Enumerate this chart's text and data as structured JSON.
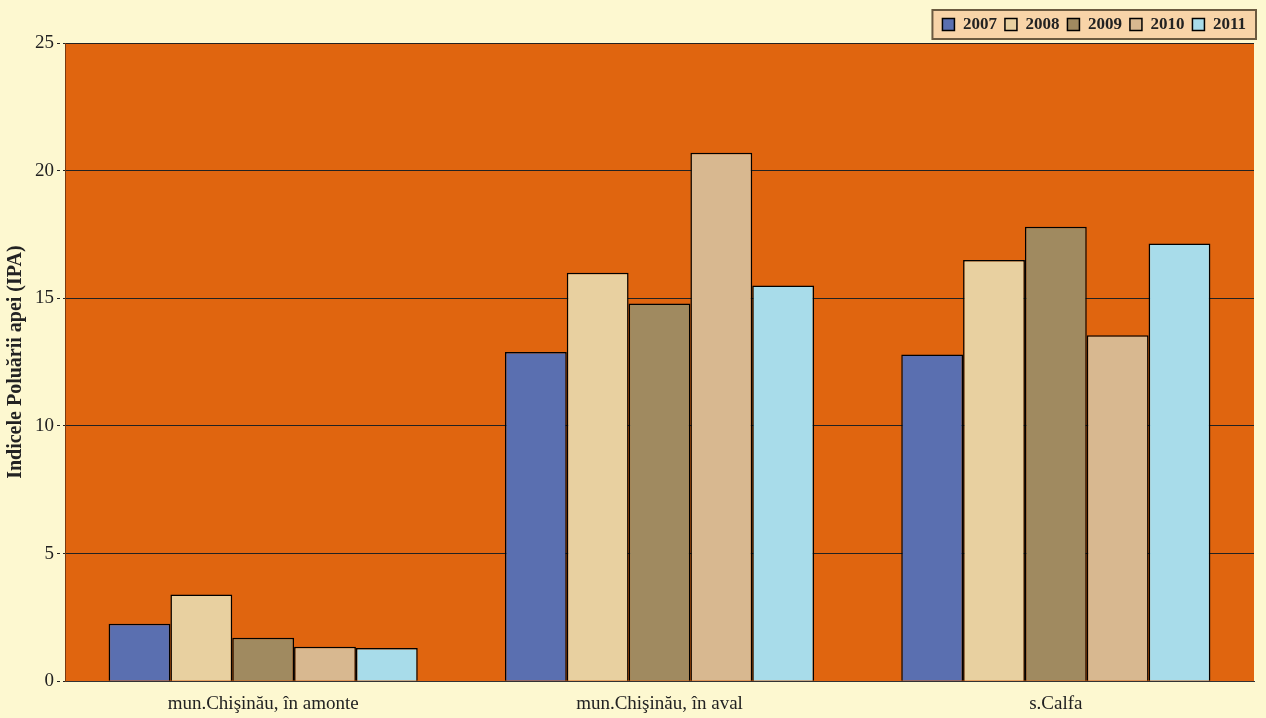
{
  "chart_data": {
    "type": "bar",
    "ylabel": "Indicele Poluării apei (IPA)",
    "categories": [
      "mun.Chişinău, în amonte",
      "mun.Chişinău, în aval",
      "s.Calfa"
    ],
    "series": [
      {
        "name": "2007",
        "color": "#5a6fb0",
        "values": [
          2.25,
          12.9,
          12.8
        ]
      },
      {
        "name": "2008",
        "color": "#e8d0a0",
        "values": [
          3.4,
          16.0,
          16.5
        ]
      },
      {
        "name": "2009",
        "color": "#a08a60",
        "values": [
          1.7,
          14.8,
          17.8
        ]
      },
      {
        "name": "2010",
        "color": "#d8b890",
        "values": [
          1.35,
          20.7,
          13.55
        ]
      },
      {
        "name": "2011",
        "color": "#a8dcea",
        "values": [
          1.3,
          15.5,
          17.15
        ]
      }
    ],
    "ylim": [
      0,
      25
    ],
    "yticks": [
      0,
      5,
      10,
      15,
      20,
      25
    ],
    "grid": "y",
    "legend": "top right"
  }
}
